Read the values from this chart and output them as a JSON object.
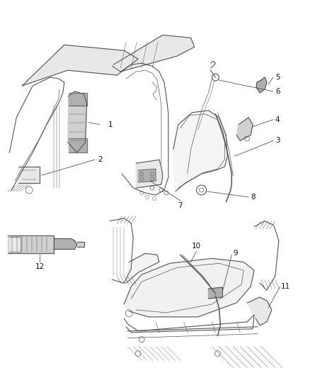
{
  "bg_color": "#ffffff",
  "line_color": "#555555",
  "label_color": "#111111",
  "leader_color": "#555555",
  "label_fontsize": 7.5,
  "fig_width": 4.38,
  "fig_height": 5.33,
  "dpi": 100,
  "gray_fill": "#d0d0d0",
  "light_gray": "#e8e8e8",
  "mid_gray": "#b0b0b0"
}
